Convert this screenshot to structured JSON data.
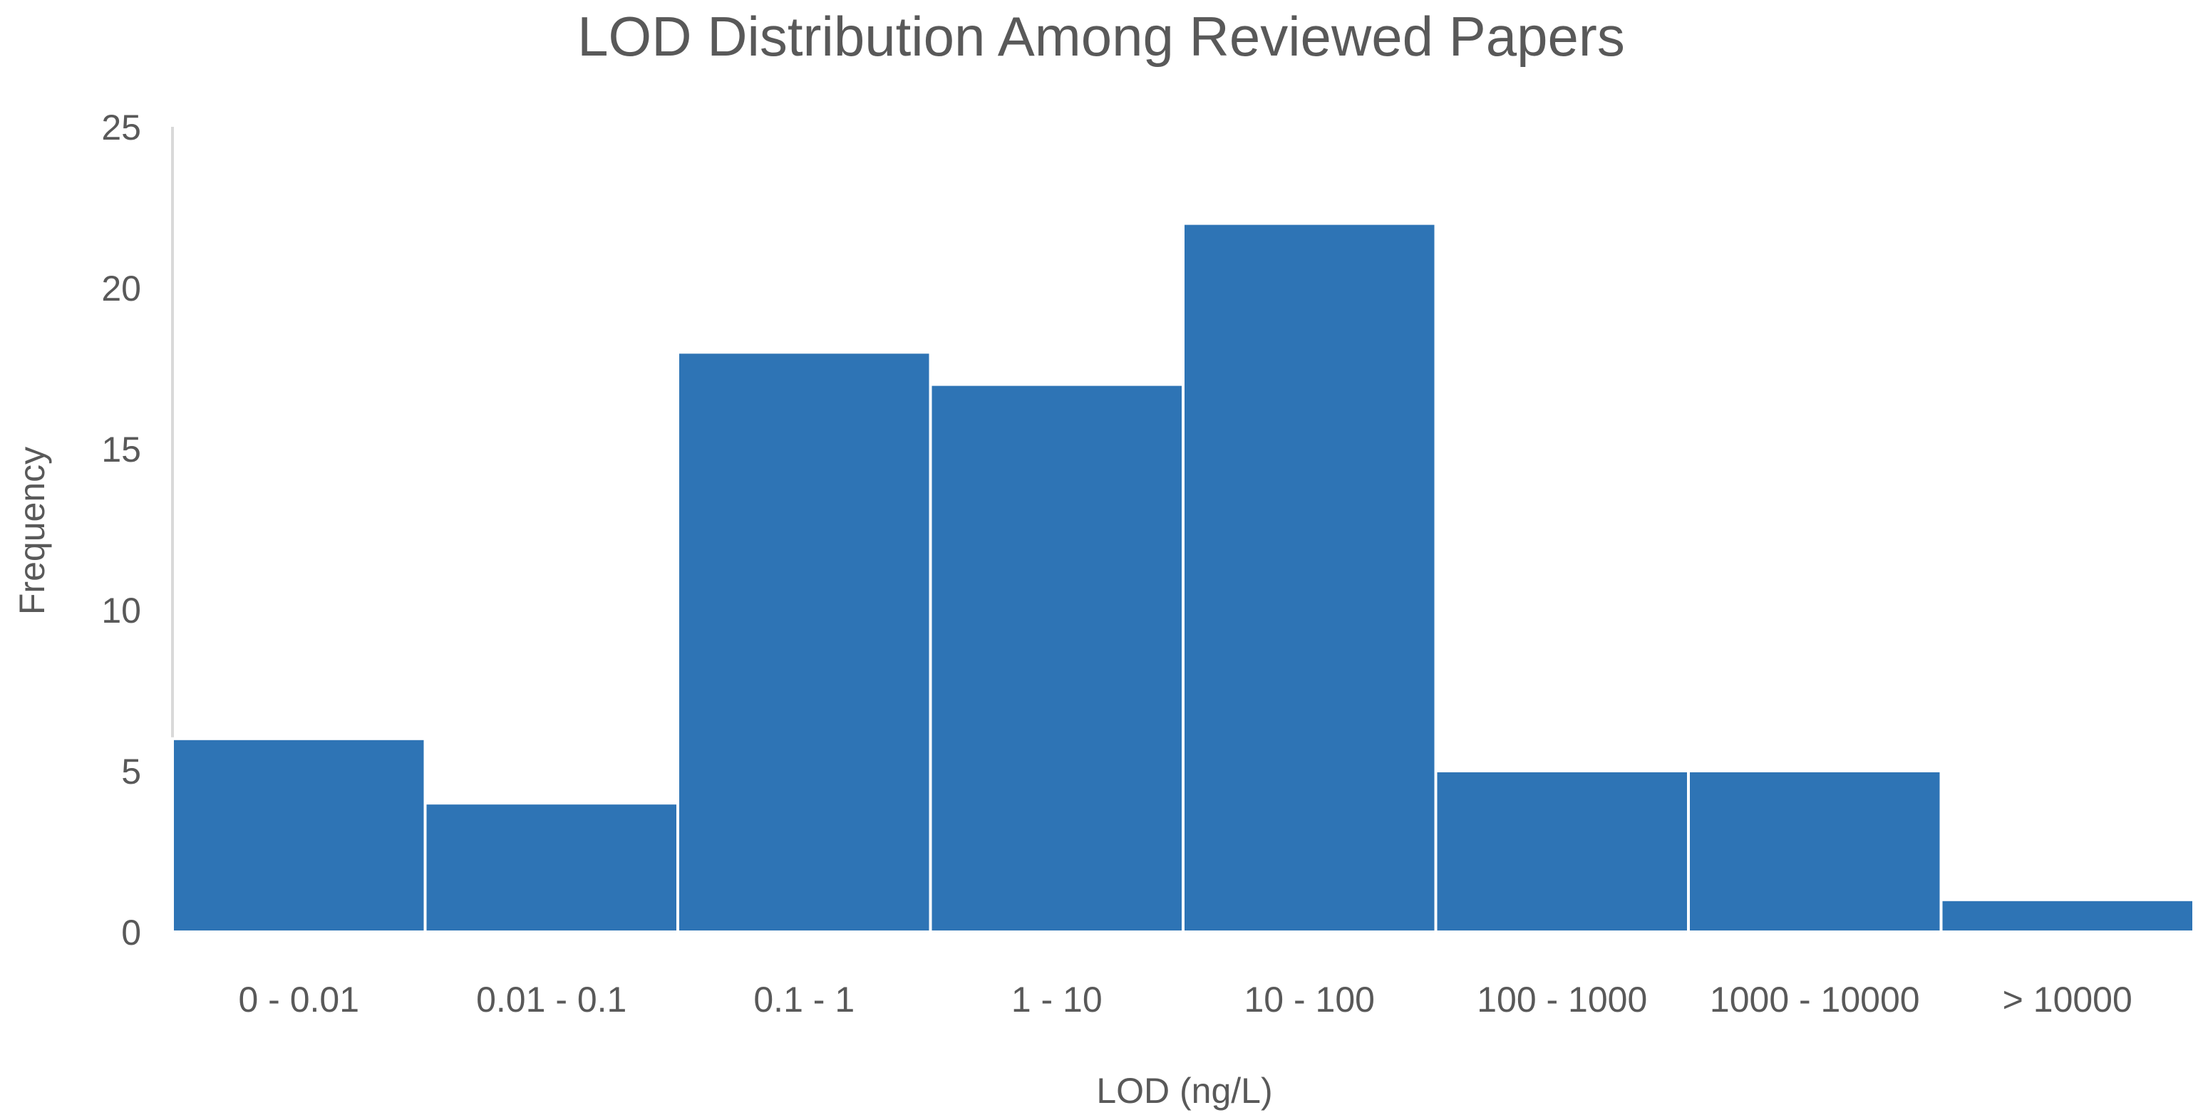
{
  "chart_data": {
    "type": "bar",
    "title": "LOD Distribution Among Reviewed Papers",
    "xlabel": "LOD (ng/L)",
    "ylabel": "Frequency",
    "categories": [
      "0 - 0.01",
      "0.01 - 0.1",
      "0.1 - 1",
      "1 - 10",
      "10 - 100",
      "100 - 1000",
      "1000 - 10000",
      "> 10000"
    ],
    "values": [
      6,
      4,
      18,
      17,
      22,
      5,
      5,
      1
    ],
    "ylim": [
      0,
      25
    ],
    "yticks": [
      0,
      5,
      10,
      15,
      20,
      25
    ],
    "grid": false,
    "legend": "none",
    "bar_color": "#2e74b5"
  }
}
